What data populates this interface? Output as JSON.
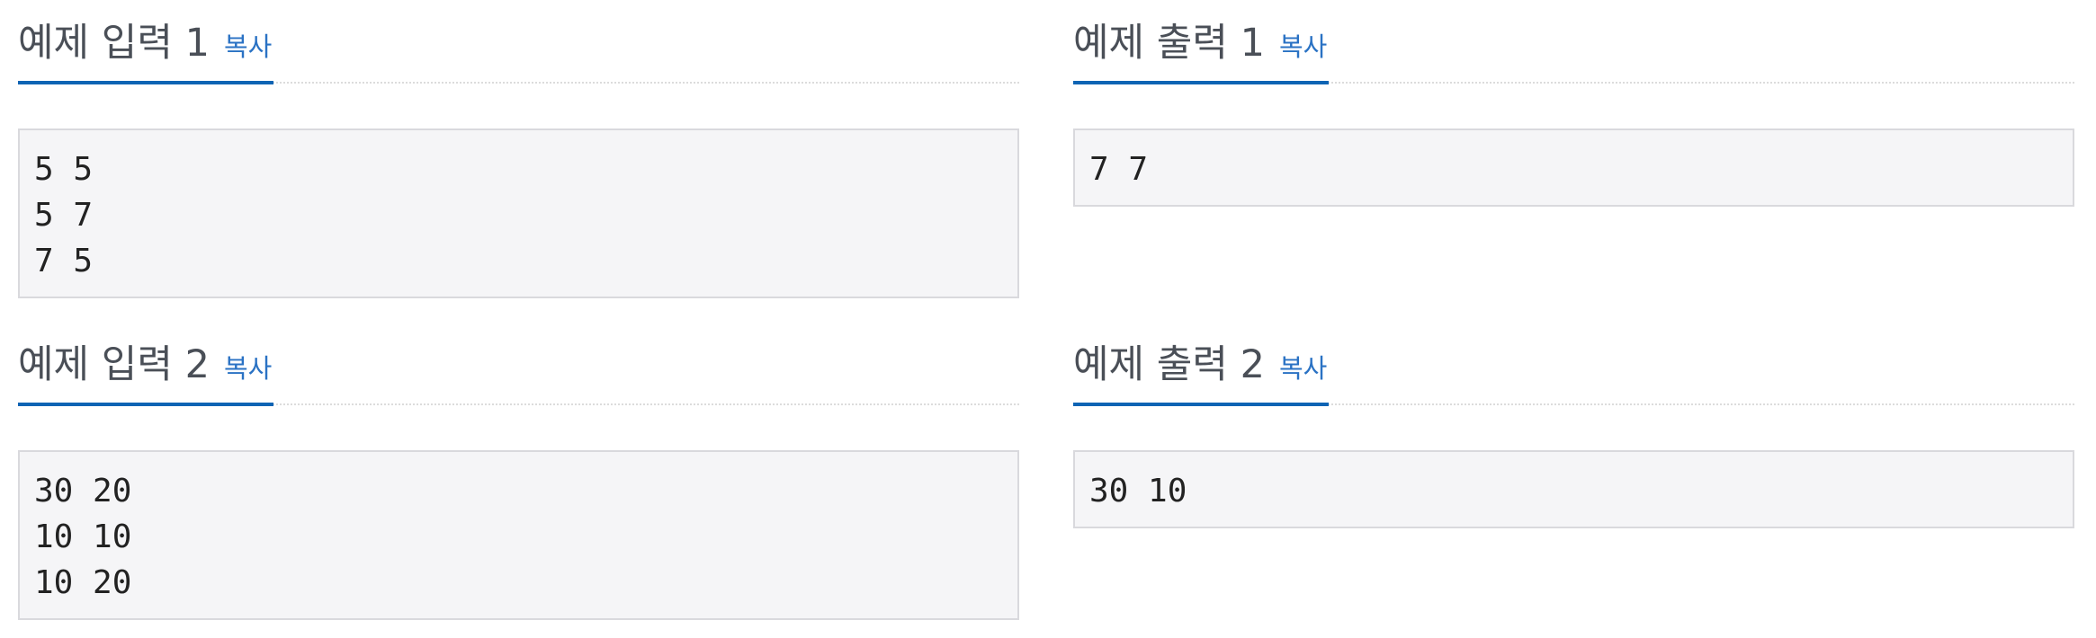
{
  "samples": [
    {
      "title": "예제 입력 1",
      "copy_label": "복사",
      "content": "5 5\n5 7\n7 5"
    },
    {
      "title": "예제 출력 1",
      "copy_label": "복사",
      "content": "7 7"
    },
    {
      "title": "예제 입력 2",
      "copy_label": "복사",
      "content": "30 20\n10 10\n10 20"
    },
    {
      "title": "예제 출력 2",
      "copy_label": "복사",
      "content": "30 10"
    }
  ],
  "colors": {
    "accent": "#0e64b4",
    "link": "#2a72c4",
    "title": "#4a4f57",
    "sample_bg": "#f5f5f7",
    "sample_border": "#d9d9dd"
  }
}
